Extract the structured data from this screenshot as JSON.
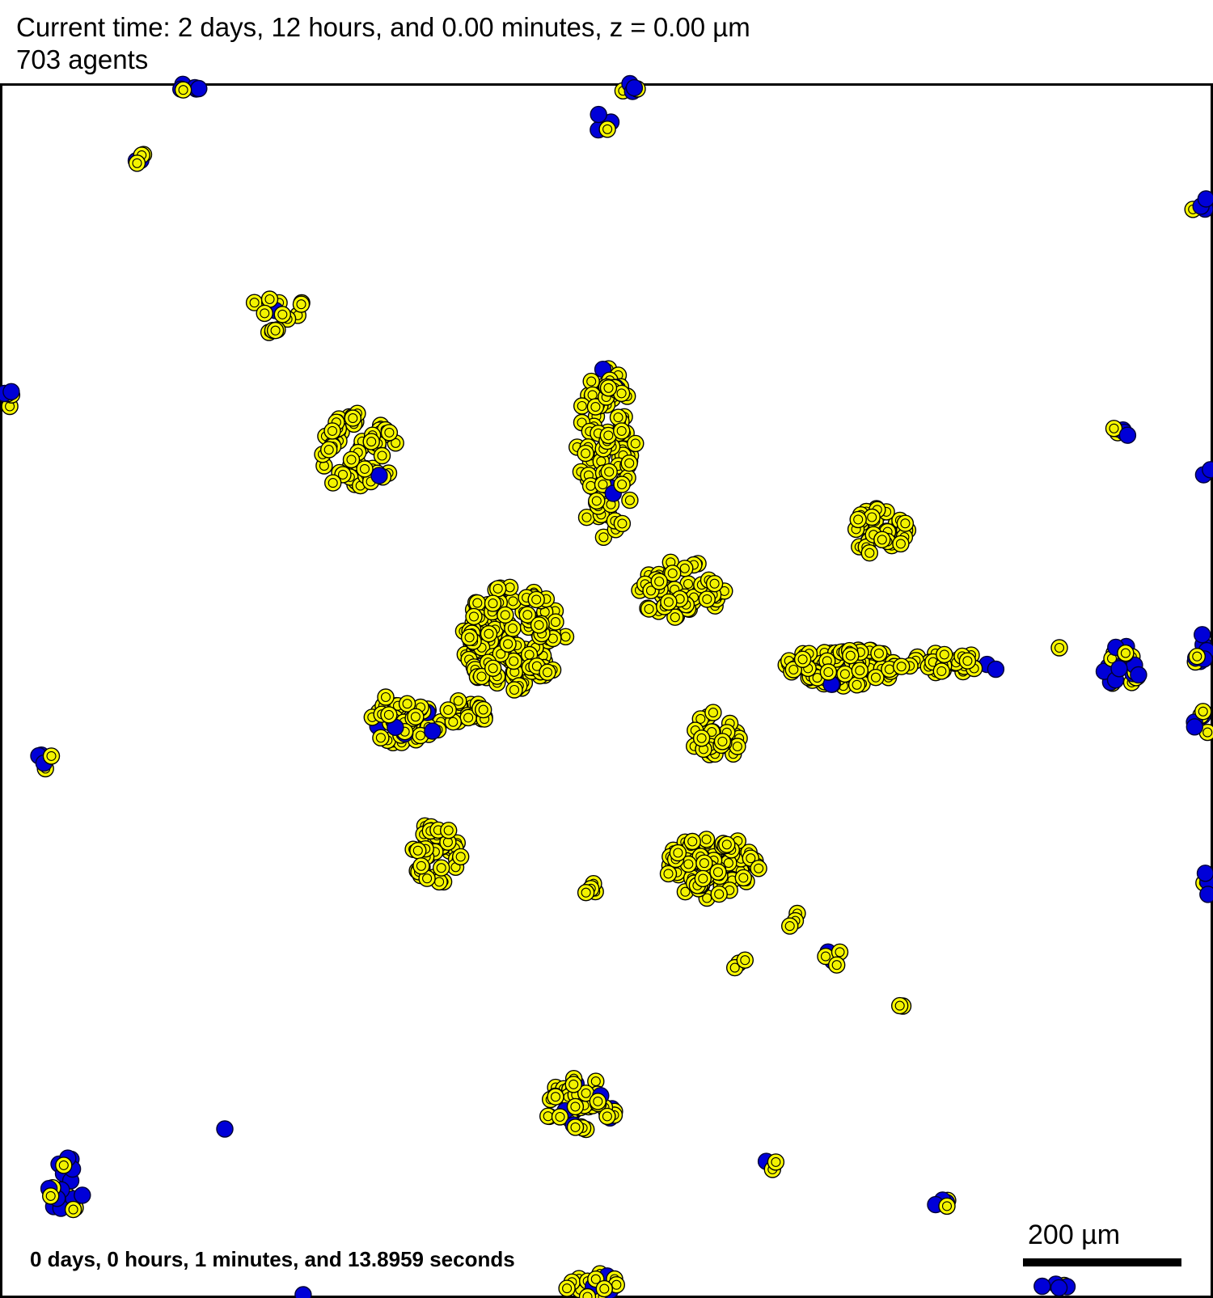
{
  "header": {
    "current_time": "Current time: 2 days, 12 hours, and 0.00 minutes, z = 0.00 µm",
    "agent_count": "703 agents"
  },
  "footer": {
    "elapsed": "0 days, 0 hours, 1 minutes, and 13.8959 seconds",
    "scale_bar_label": "200 µm"
  },
  "colors": {
    "background": "#ffffff",
    "cell_type_a": "#ffff00",
    "cell_type_b": "#0000d8",
    "outline": "#000000"
  }
}
